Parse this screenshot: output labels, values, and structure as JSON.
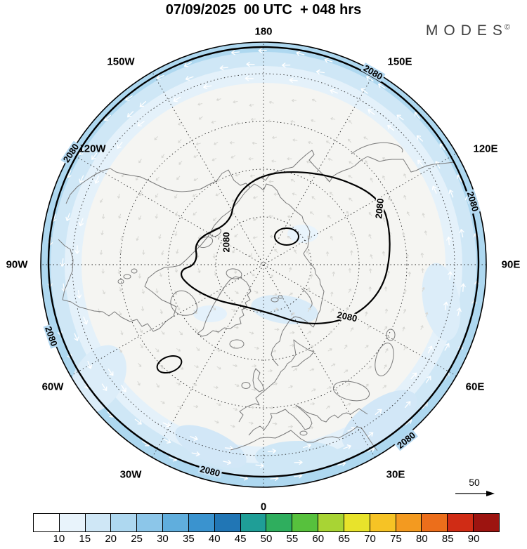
{
  "header": {
    "title": "07/09/2025  00 UTC  + 048 hrs",
    "logo_text": "MODES",
    "logo_sup": "©"
  },
  "map": {
    "lon_labels": [
      "180",
      "150W",
      "150E",
      "120W",
      "120E",
      "90W",
      "90E",
      "60W",
      "60E",
      "30W",
      "30E",
      "0"
    ],
    "contour_label": "2080",
    "ref_arrow_label": "50"
  },
  "colorbar": {
    "ticks": [
      "10",
      "15",
      "20",
      "25",
      "30",
      "35",
      "40",
      "45",
      "50",
      "55",
      "60",
      "65",
      "70",
      "75",
      "80",
      "85",
      "90"
    ],
    "colors": [
      "#ffffff",
      "#e8f3fb",
      "#cfe7f6",
      "#aed8f0",
      "#8cc6e9",
      "#60aedd",
      "#3a93cf",
      "#2176b5",
      "#1f9e97",
      "#2fae5e",
      "#57c13d",
      "#a8d434",
      "#e8e32b",
      "#f6c325",
      "#f39a20",
      "#ec6e1b",
      "#d02c15",
      "#9d1410"
    ]
  },
  "chart_data": {
    "type": "heatmap",
    "subtype": "north-polar-stereographic weather chart with contours, shading and wind arrows",
    "title": "07/09/2025  00 UTC  + 048 hrs",
    "branding": "MODES©",
    "projection": {
      "center": "North Pole",
      "longitude_ring_labels": [
        "180",
        "150W",
        "150E",
        "120W",
        "120E",
        "90W",
        "90E",
        "60W",
        "60E",
        "30W",
        "30E",
        "0"
      ],
      "graticule": "dashed latitude circles and 30-degree meridians"
    },
    "contours": {
      "labeled_level": 2080,
      "label_occurrences": 9,
      "features": [
        "thick near-circular contour just inside the map boundary labeled 2080",
        "large irregular closed contour around the pole labeled 2080",
        "small closed contour near the pole",
        "small closed contour in the lower-left quadrant"
      ]
    },
    "shading": {
      "levels": [
        10,
        15,
        20,
        25,
        30,
        35,
        40,
        45,
        50,
        55,
        60,
        65,
        70,
        75,
        80,
        85,
        90
      ],
      "colors": [
        "#ffffff",
        "#e8f3fb",
        "#cfe7f6",
        "#aed8f0",
        "#8cc6e9",
        "#60aedd",
        "#3a93cf",
        "#2176b5",
        "#1f9e97",
        "#2fae5e",
        "#57c13d",
        "#a8d434",
        "#e8e32b",
        "#f6c325",
        "#f39a20",
        "#ec6e1b",
        "#d02c15",
        "#9d1410"
      ],
      "values_visible_on_map": [
        10,
        15,
        20,
        25
      ],
      "pattern": "light blue annular band around the outer edge of the circular map, white interior"
    },
    "vectors": {
      "style": "small white arrows in the outer shaded band, faint gray arrows in the interior",
      "reference_value": 50
    },
    "legend_position": "bottom horizontal colorbar"
  }
}
